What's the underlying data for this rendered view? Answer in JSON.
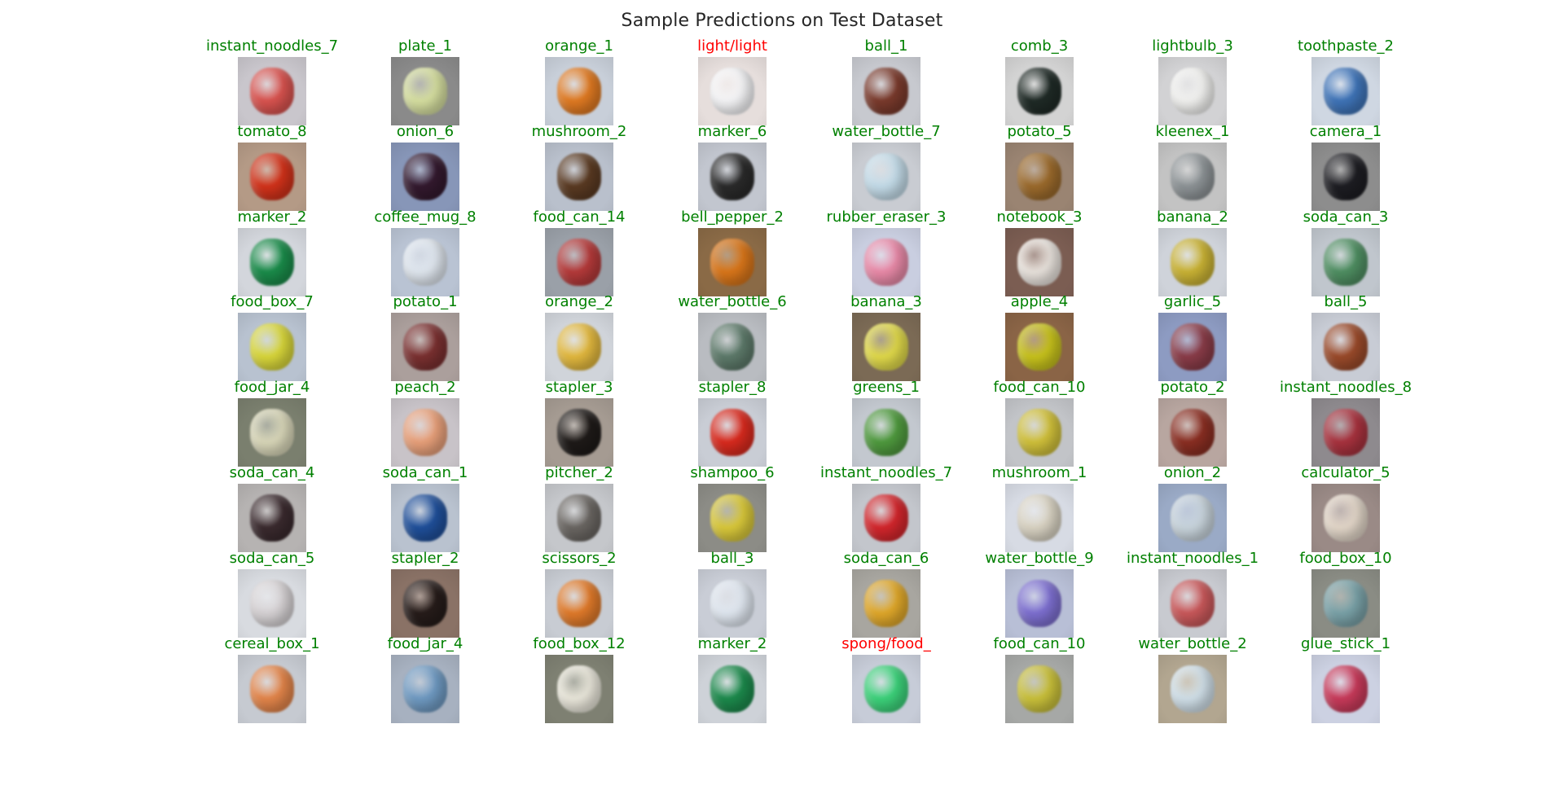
{
  "figure": {
    "title": "Sample Predictions on Test Dataset",
    "correct_color": "#008000",
    "incorrect_color": "#ff0000",
    "grid": {
      "rows": 8,
      "cols": 8
    },
    "samples": [
      {
        "label": "instant_noodles_7",
        "correct": true,
        "bg": "#c9c6cc",
        "obj": "#d9534f"
      },
      {
        "label": "plate_1",
        "correct": true,
        "bg": "#8a8a8a",
        "obj": "#d6dfa0"
      },
      {
        "label": "orange_1",
        "correct": true,
        "bg": "#c8cfd9",
        "obj": "#e07a22"
      },
      {
        "label": "light/light",
        "correct": false,
        "bg": "#e6dedc",
        "obj": "#f4f4f6"
      },
      {
        "label": "ball_1",
        "correct": true,
        "bg": "#c7c9cf",
        "obj": "#7a3a2c"
      },
      {
        "label": "comb_3",
        "correct": true,
        "bg": "#d3d3d3",
        "obj": "#1f2a26"
      },
      {
        "label": "lightbulb_3",
        "correct": true,
        "bg": "#d2d2d4",
        "obj": "#f1f1ef"
      },
      {
        "label": "toothpaste_2",
        "correct": true,
        "bg": "#cfd7e2",
        "obj": "#3f74b8"
      },
      {
        "label": "tomato_8",
        "correct": true,
        "bg": "#b49a86",
        "obj": "#d2321a"
      },
      {
        "label": "onion_6",
        "correct": true,
        "bg": "#8796b8",
        "obj": "#33192e"
      },
      {
        "label": "mushroom_2",
        "correct": true,
        "bg": "#b9c0cc",
        "obj": "#5a3a22"
      },
      {
        "label": "marker_6",
        "correct": true,
        "bg": "#c2c6cf",
        "obj": "#2a2a2a"
      },
      {
        "label": "water_bottle_7",
        "correct": true,
        "bg": "#c9ccd2",
        "obj": "#c3dbe8"
      },
      {
        "label": "potato_5",
        "correct": true,
        "bg": "#9a8472",
        "obj": "#9b6a2c"
      },
      {
        "label": "kleenex_1",
        "correct": true,
        "bg": "#c3c3c3",
        "obj": "#8d9396"
      },
      {
        "label": "camera_1",
        "correct": true,
        "bg": "#8d8d8d",
        "obj": "#1d1d22"
      },
      {
        "label": "marker_2",
        "correct": true,
        "bg": "#d3d6dc",
        "obj": "#1a8c4a"
      },
      {
        "label": "coffee_mug_8",
        "correct": true,
        "bg": "#b9c3d3",
        "obj": "#dfe6ee"
      },
      {
        "label": "food_can_14",
        "correct": true,
        "bg": "#9aa0a8",
        "obj": "#b53a3a"
      },
      {
        "label": "bell_pepper_2",
        "correct": true,
        "bg": "#8a6a46",
        "obj": "#d9761a"
      },
      {
        "label": "rubber_eraser_3",
        "correct": true,
        "bg": "#c9cee0",
        "obj": "#e98aa8"
      },
      {
        "label": "notebook_3",
        "correct": true,
        "bg": "#7b5d52",
        "obj": "#e8e2dc"
      },
      {
        "label": "banana_2",
        "correct": true,
        "bg": "#cfd3da",
        "obj": "#c9b234"
      },
      {
        "label": "soda_can_3",
        "correct": true,
        "bg": "#c0c6cd",
        "obj": "#4f8f62"
      },
      {
        "label": "food_box_7",
        "correct": true,
        "bg": "#b8c2d0",
        "obj": "#d8d63a"
      },
      {
        "label": "potato_1",
        "correct": true,
        "bg": "#ab9f9c",
        "obj": "#7a3030"
      },
      {
        "label": "orange_2",
        "correct": true,
        "bg": "#d0d4da",
        "obj": "#e2b83e"
      },
      {
        "label": "water_bottle_6",
        "correct": true,
        "bg": "#b9bcc1",
        "obj": "#5d7a6a"
      },
      {
        "label": "banana_3",
        "correct": true,
        "bg": "#7b6a55",
        "obj": "#e0d94a"
      },
      {
        "label": "apple_4",
        "correct": true,
        "bg": "#8a6446",
        "obj": "#c7c21c"
      },
      {
        "label": "garlic_5",
        "correct": true,
        "bg": "#8d9bc2",
        "obj": "#8a3c48"
      },
      {
        "label": "ball_5",
        "correct": true,
        "bg": "#c8ccd5",
        "obj": "#9a4a2a"
      },
      {
        "label": "food_jar_4",
        "correct": true,
        "bg": "#7a7f6e",
        "obj": "#d9d7b9"
      },
      {
        "label": "peach_2",
        "correct": true,
        "bg": "#c8c3c8",
        "obj": "#e8a07a"
      },
      {
        "label": "stapler_3",
        "correct": true,
        "bg": "#a59b92",
        "obj": "#1e1a18"
      },
      {
        "label": "stapler_8",
        "correct": true,
        "bg": "#c9cdd5",
        "obj": "#d92a1e"
      },
      {
        "label": "greens_1",
        "correct": true,
        "bg": "#c3c8cf",
        "obj": "#4f9a3e"
      },
      {
        "label": "food_can_10",
        "correct": true,
        "bg": "#c2c4c8",
        "obj": "#d0c03a"
      },
      {
        "label": "potato_2",
        "correct": true,
        "bg": "#b8a6a0",
        "obj": "#8a2e22"
      },
      {
        "label": "instant_noodles_8",
        "correct": true,
        "bg": "#8e8a8e",
        "obj": "#a8323e"
      },
      {
        "label": "soda_can_4",
        "correct": true,
        "bg": "#b6b3b2",
        "obj": "#3a2a2e"
      },
      {
        "label": "soda_can_1",
        "correct": true,
        "bg": "#b9c2cf",
        "obj": "#1f4f9a"
      },
      {
        "label": "pitcher_2",
        "correct": true,
        "bg": "#c5c7cb",
        "obj": "#6a6662"
      },
      {
        "label": "shampoo_6",
        "correct": true,
        "bg": "#8c8c86",
        "obj": "#d9c83a"
      },
      {
        "label": "instant_noodles_7",
        "correct": true,
        "bg": "#c3c6cc",
        "obj": "#d3262c"
      },
      {
        "label": "mushroom_1",
        "correct": true,
        "bg": "#d7dbe4",
        "obj": "#d9d3c3"
      },
      {
        "label": "onion_2",
        "correct": true,
        "bg": "#9aaac6",
        "obj": "#c8d4dc"
      },
      {
        "label": "calculator_5",
        "correct": true,
        "bg": "#9a8a86",
        "obj": "#e2d6c8"
      },
      {
        "label": "soda_can_5",
        "correct": true,
        "bg": "#d8dbe0",
        "obj": "#d6d2d4"
      },
      {
        "label": "stapler_2",
        "correct": true,
        "bg": "#8a7266",
        "obj": "#261c1a"
      },
      {
        "label": "scissors_2",
        "correct": true,
        "bg": "#c8ccd3",
        "obj": "#e07a2a"
      },
      {
        "label": "ball_3",
        "correct": true,
        "bg": "#c9cdd6",
        "obj": "#dfe6ef"
      },
      {
        "label": "soda_can_6",
        "correct": true,
        "bg": "#a8a6a0",
        "obj": "#e0a82a"
      },
      {
        "label": "water_bottle_9",
        "correct": true,
        "bg": "#b8bfd6",
        "obj": "#7d6fd0"
      },
      {
        "label": "instant_noodles_1",
        "correct": true,
        "bg": "#c8cad0",
        "obj": "#c9585a"
      },
      {
        "label": "food_box_10",
        "correct": true,
        "bg": "#8a8c84",
        "obj": "#7aa2a8"
      },
      {
        "label": "cereal_box_1",
        "correct": true,
        "bg": "#c6cad1",
        "obj": "#e3854a"
      },
      {
        "label": "food_jar_4",
        "correct": true,
        "bg": "#a7b1c0",
        "obj": "#6f9ac2"
      },
      {
        "label": "food_box_12",
        "correct": true,
        "bg": "#7e8072",
        "obj": "#e9e6da"
      },
      {
        "label": "marker_2",
        "correct": true,
        "bg": "#ced2d8",
        "obj": "#1c8a4c"
      },
      {
        "label": "spong/food_",
        "correct": false,
        "bg": "#c7ccd8",
        "obj": "#3cd27a"
      },
      {
        "label": "food_can_10",
        "correct": true,
        "bg": "#a6a8a6",
        "obj": "#c9c03a"
      },
      {
        "label": "water_bottle_2",
        "correct": true,
        "bg": "#b2a690",
        "obj": "#d0dfe8"
      },
      {
        "label": "glue_stick_1",
        "correct": true,
        "bg": "#ccd1e2",
        "obj": "#c83a5a"
      }
    ]
  }
}
